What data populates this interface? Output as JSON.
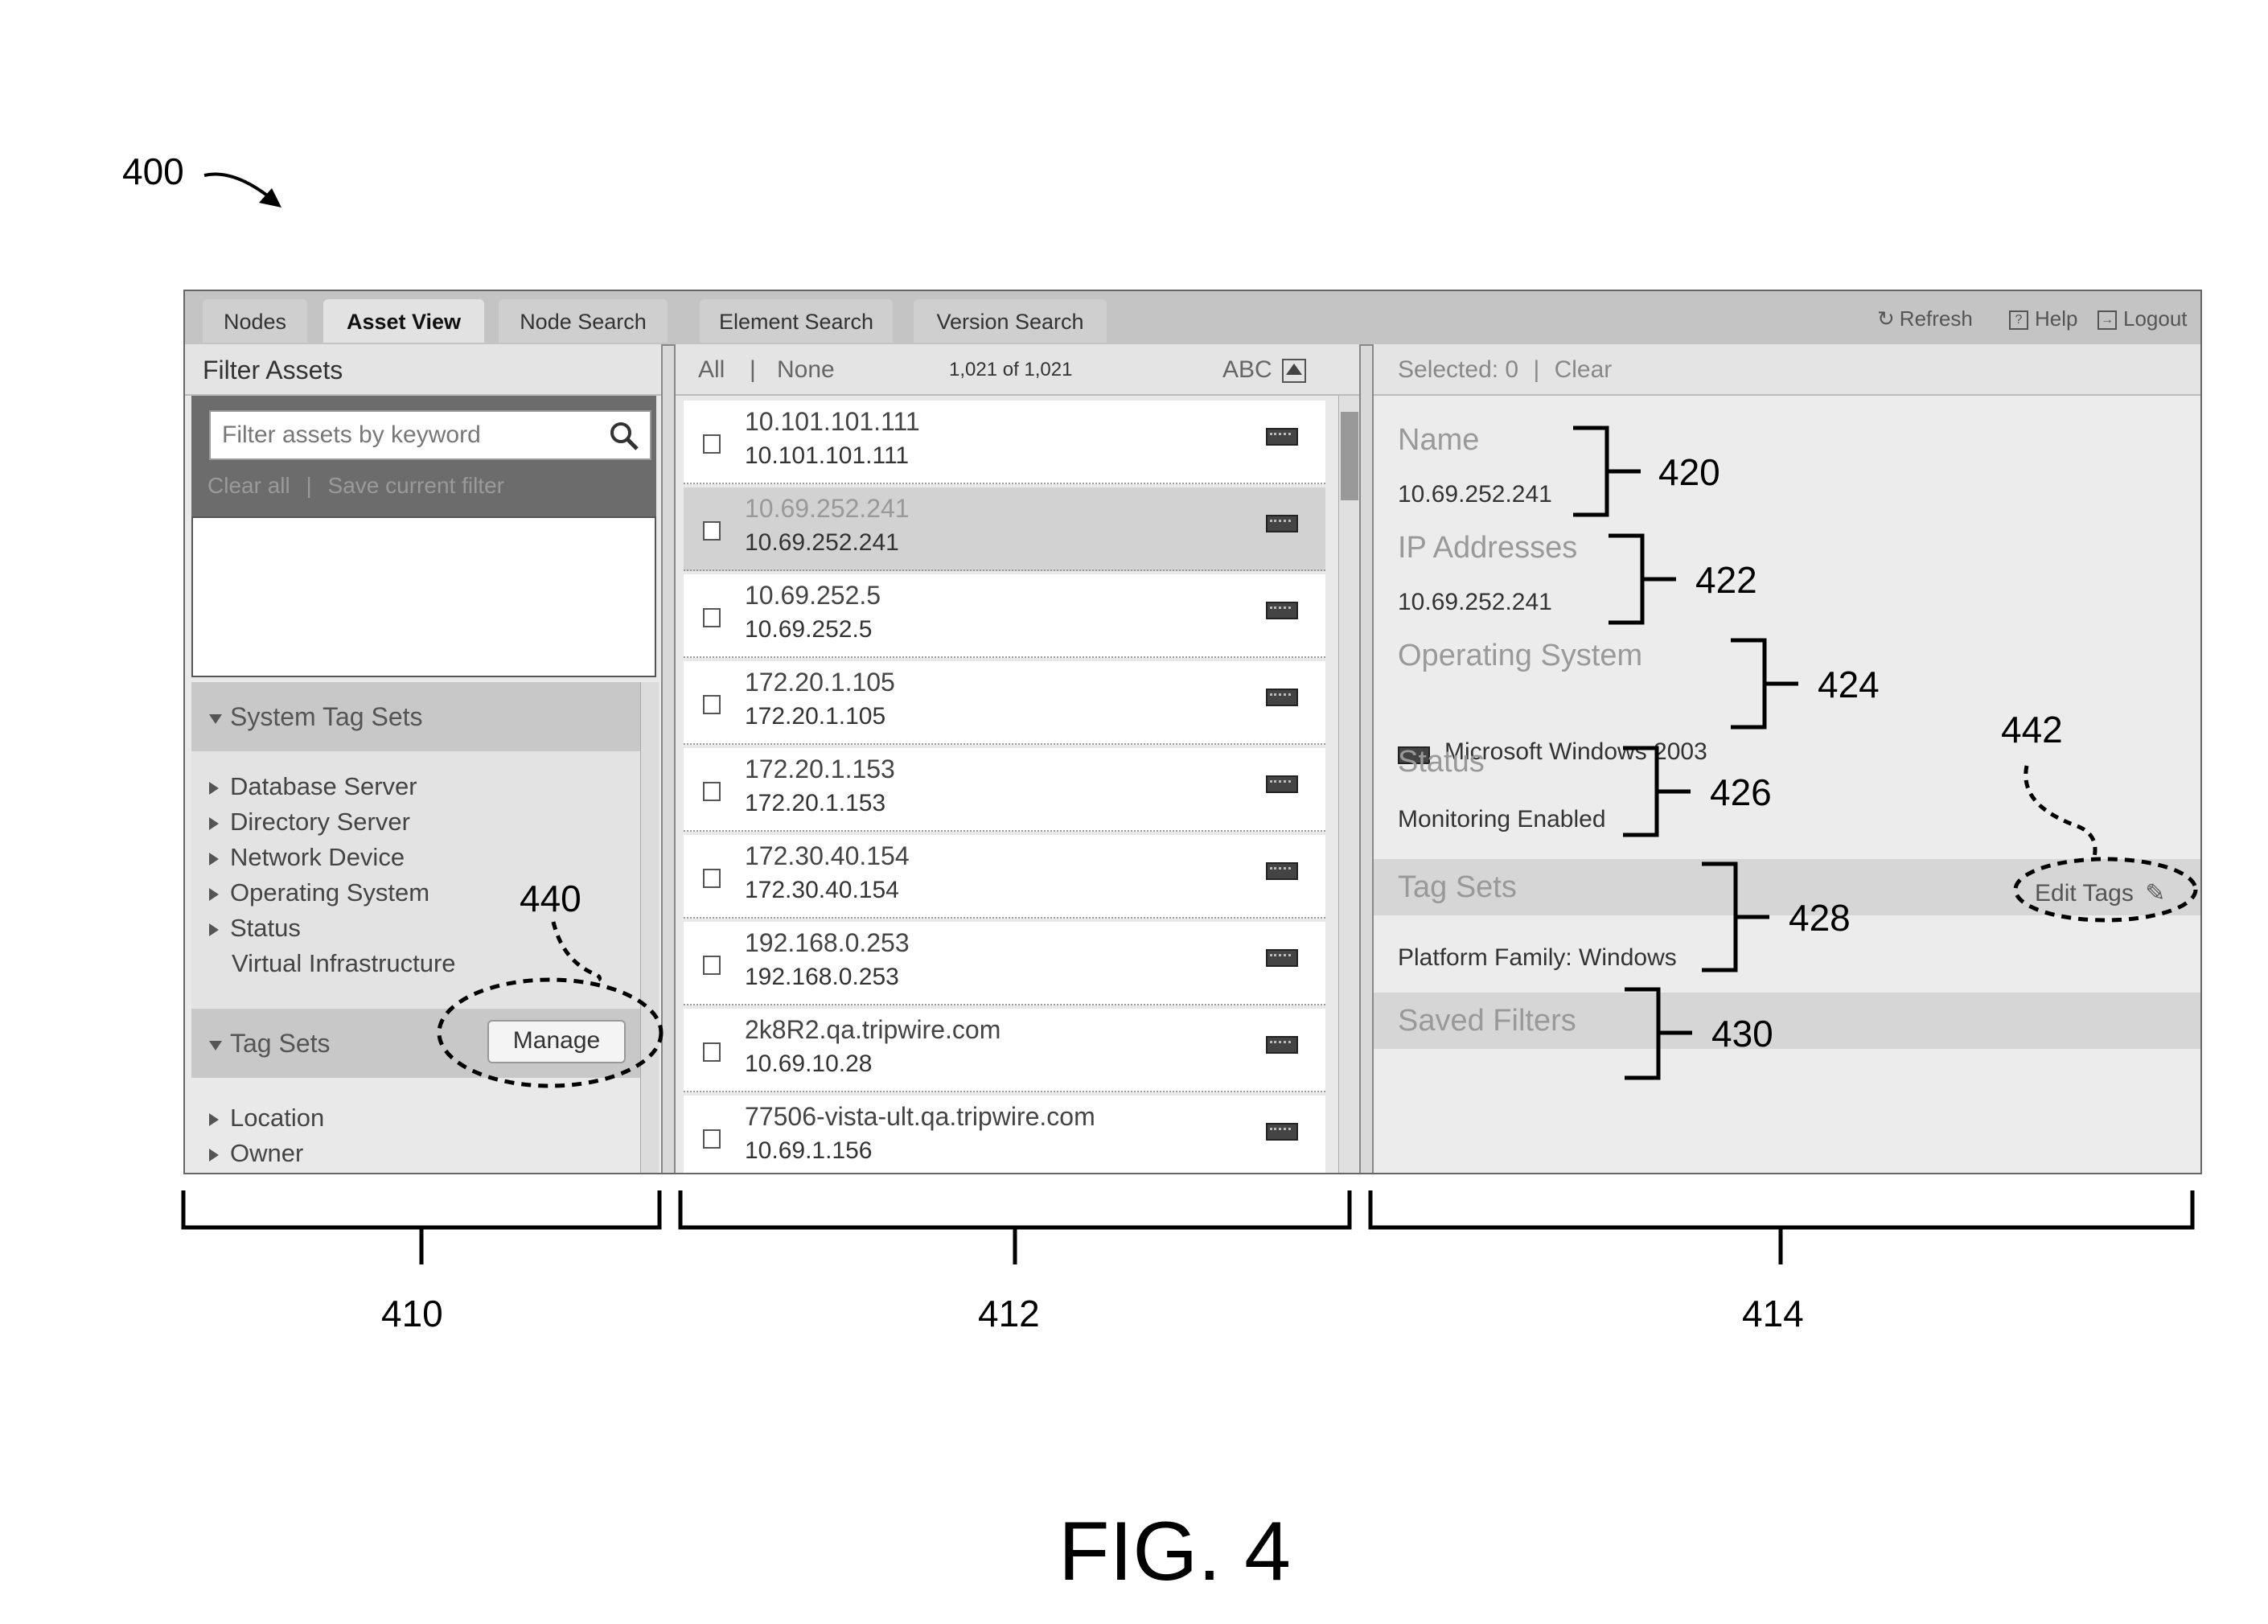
{
  "figure": {
    "ref_400": "400",
    "ref_410": "410",
    "ref_412": "412",
    "ref_414": "414",
    "ref_420": "420",
    "ref_422": "422",
    "ref_424": "424",
    "ref_426": "426",
    "ref_428": "428",
    "ref_430": "430",
    "ref_440": "440",
    "ref_442": "442",
    "title": "FIG. 4"
  },
  "tabs": [
    "Nodes",
    "Asset View",
    "Node Search",
    "Element Search",
    "Version Search"
  ],
  "toolbar": {
    "refresh": "Refresh",
    "help": "Help",
    "logout": "Logout"
  },
  "left_panel": {
    "title": "Filter Assets",
    "search_placeholder": "Filter assets by keyword",
    "clear_all": "Clear all",
    "separator": "|",
    "save_filter": "Save current filter",
    "system_tag_sets": {
      "title": "System Tag Sets",
      "items": [
        "Database Server",
        "Directory Server",
        "Network Device",
        "Operating System",
        "Status",
        "Virtual Infrastructure"
      ]
    },
    "tag_sets": {
      "title": "Tag Sets",
      "manage": "Manage",
      "items": [
        "Location",
        "Owner"
      ]
    }
  },
  "middle_panel": {
    "all": "All",
    "separator": "|",
    "none": "None",
    "count": "1,021 of 1,021",
    "sort": "ABC",
    "assets": [
      {
        "name": "10.101.101.111",
        "ip": "10.101.101.111"
      },
      {
        "name": "10.69.252.241",
        "ip": "10.69.252.241"
      },
      {
        "name": "10.69.252.5",
        "ip": "10.69.252.5"
      },
      {
        "name": "172.20.1.105",
        "ip": "172.20.1.105"
      },
      {
        "name": "172.20.1.153",
        "ip": "172.20.1.153"
      },
      {
        "name": "172.30.40.154",
        "ip": "172.30.40.154"
      },
      {
        "name": "192.168.0.253",
        "ip": "192.168.0.253"
      },
      {
        "name": "2k8R2.qa.tripwire.com",
        "ip": "10.69.10.28"
      },
      {
        "name": "77506-vista-ult.qa.tripwire.com",
        "ip": "10.69.1.156"
      }
    ]
  },
  "right_panel": {
    "selected": "Selected: 0",
    "separator": "|",
    "clear": "Clear",
    "name_label": "Name",
    "name_value": "10.69.252.241",
    "ip_label": "IP Addresses",
    "ip_value": "10.69.252.241",
    "os_label": "Operating System",
    "os_value": "Microsoft Windows 2003",
    "status_label": "Status",
    "status_value": "Monitoring Enabled",
    "tagsets_label": "Tag Sets",
    "edit_tags": "Edit Tags",
    "tagsets_value": "Platform Family: Windows",
    "saved_filters_label": "Saved Filters"
  }
}
